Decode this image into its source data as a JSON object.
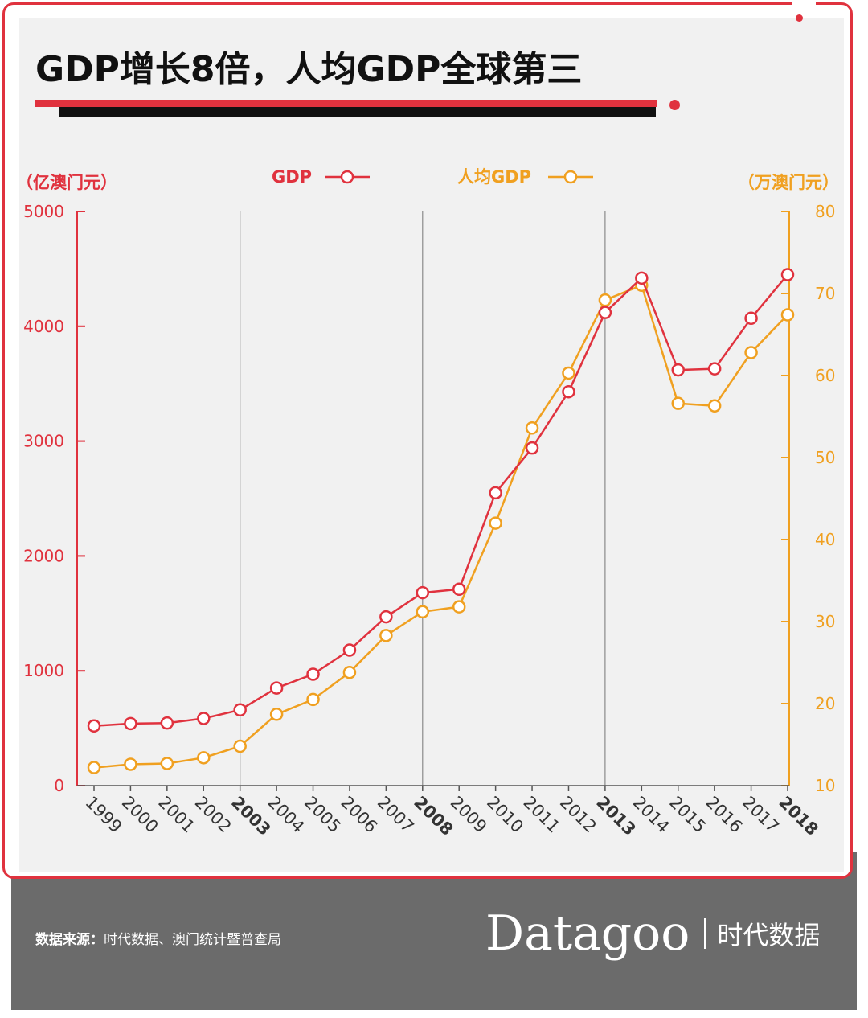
{
  "title": "GDP增长8倍，人均GDP全球第三",
  "footer": {
    "source_label": "数据来源：",
    "source_text": "时代数据、澳门统计暨普查局",
    "brand_name": "Datagoo",
    "brand_cn": "时代数据"
  },
  "colors": {
    "accent": "#e0323e",
    "gdp": "#e0323e",
    "per_capita": "#f0a020",
    "footer_bg": "#6b6b6b"
  },
  "chart_data": {
    "type": "line",
    "title": "GDP增长8倍，人均GDP全球第三",
    "x": [
      "1999",
      "2000",
      "2001",
      "2002",
      "2003",
      "2004",
      "2005",
      "2006",
      "2007",
      "2008",
      "2009",
      "2010",
      "2011",
      "2012",
      "2013",
      "2014",
      "2015",
      "2016",
      "2017",
      "2018"
    ],
    "highlight_years": [
      "2003",
      "2008",
      "2013",
      "2018"
    ],
    "reference_lines": [
      "2003",
      "2008",
      "2013"
    ],
    "left_axis": {
      "unit": "（亿澳门元）",
      "ylim": [
        0,
        5000
      ],
      "ticks": [
        0,
        1000,
        2000,
        3000,
        4000,
        5000
      ]
    },
    "right_axis": {
      "unit": "（万澳门元）",
      "ylim": [
        10,
        80
      ],
      "ticks": [
        10,
        20,
        30,
        40,
        50,
        60,
        70,
        80
      ]
    },
    "series": [
      {
        "name": "GDP",
        "axis": "left",
        "color": "#e0323e",
        "values": [
          520,
          540,
          545,
          585,
          660,
          850,
          970,
          1180,
          1470,
          1680,
          1710,
          2550,
          2940,
          3430,
          4120,
          4420,
          3620,
          3630,
          4070,
          4450
        ]
      },
      {
        "name": "人均GDP",
        "axis": "right",
        "color": "#f0a020",
        "values": [
          12.2,
          12.6,
          12.7,
          13.4,
          14.8,
          18.7,
          20.5,
          23.8,
          28.3,
          31.2,
          31.8,
          42.0,
          53.6,
          60.3,
          69.2,
          71.0,
          56.6,
          56.3,
          62.8,
          67.4
        ]
      }
    ],
    "grid": false
  }
}
